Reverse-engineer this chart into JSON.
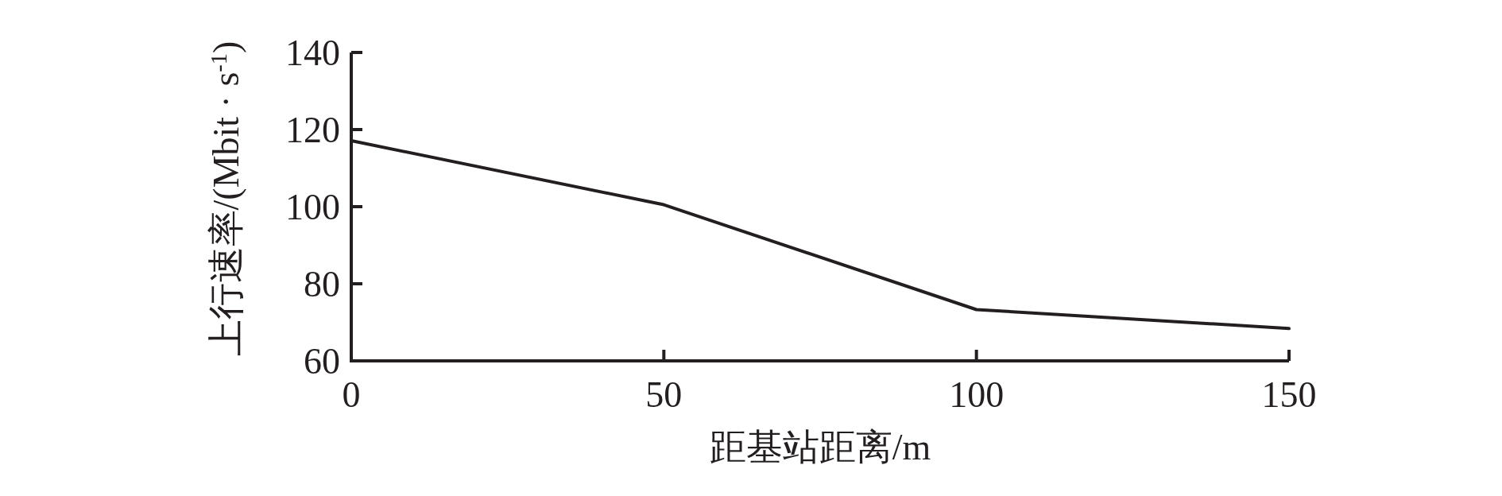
{
  "chart_data": {
    "type": "line",
    "xlabel": "距基站距离/m",
    "ylabel": "上行速率/(Mbit · s$^{-1}$)",
    "x": [
      0,
      50,
      100,
      150
    ],
    "series": [
      {
        "color": "#231f20",
        "values": [
          117.1,
          100.5,
          73.3,
          68.4
        ]
      }
    ],
    "xlim": [
      0,
      150
    ],
    "ylim": [
      60,
      140
    ],
    "xticks": [
      0,
      50,
      100,
      150
    ],
    "yticks": [
      60,
      80,
      100,
      120,
      140
    ],
    "grid": false,
    "marker": "none",
    "line_style": "solid"
  }
}
